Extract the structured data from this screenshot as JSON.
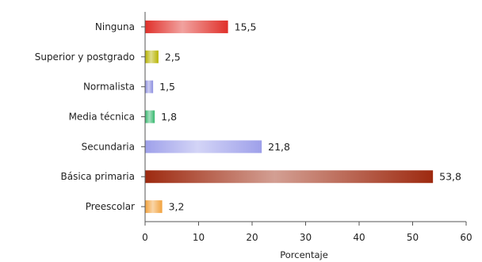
{
  "chart_data": {
    "type": "bar",
    "orientation": "horizontal",
    "categories": [
      "Ninguna",
      "Superior y postgrado",
      "Normalista",
      "Media técnica",
      "Secundaria",
      "Básica primaria",
      "Preescolar"
    ],
    "values": [
      15.5,
      2.5,
      1.5,
      1.8,
      21.8,
      53.8,
      3.2
    ],
    "value_labels": [
      "15,5",
      "2,5",
      "1,5",
      "1,8",
      "21,8",
      "53,8",
      "3,2"
    ],
    "colors": [
      "#e0302a",
      "#b7b300",
      "#8d8fe0",
      "#37b86e",
      "#9ea0ea",
      "#9e2a10",
      "#f2a23d"
    ],
    "title": "",
    "xlabel": "Porcentaje",
    "ylabel": "",
    "xlim": [
      0,
      60
    ],
    "xticks": [
      0,
      10,
      20,
      30,
      40,
      50,
      60
    ],
    "grid": false,
    "legend": "none"
  }
}
